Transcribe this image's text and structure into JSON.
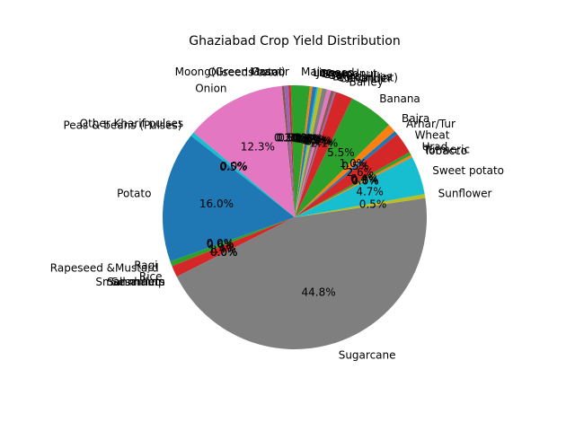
{
  "chart_data": {
    "type": "pie",
    "title": "Ghaziabad Crop Yield Distribution",
    "start_angle_deg": 140,
    "direction": "counterclockwise",
    "slices": [
      {
        "name": "Other Kharif pulses",
        "value": 0.0,
        "pct_label": "0.0%",
        "color": "#1f77b4"
      },
      {
        "name": "Peas & beans (Pulses)",
        "value": 0.5,
        "pct_label": "0.5%",
        "color": "#17becf"
      },
      {
        "name": "Potato",
        "value": 16.0,
        "pct_label": "16.0%",
        "color": "#1f77b4"
      },
      {
        "name": "Ragi",
        "value": 0.0,
        "pct_label": "0.0%",
        "color": "#ff7f0e"
      },
      {
        "name": "Rapeseed &Mustard",
        "value": 0.6,
        "pct_label": "0.6%",
        "color": "#2ca02c"
      },
      {
        "name": "Rice",
        "value": 1.4,
        "pct_label": "1.4%",
        "color": "#d62728"
      },
      {
        "name": "Sannhamp",
        "value": 0.0,
        "pct_label": "0.0%",
        "color": "#9467bd"
      },
      {
        "name": "Sesamum",
        "value": 0.0,
        "pct_label": "0.0%",
        "color": "#8c564b"
      },
      {
        "name": "Small millets",
        "value": 0.0,
        "pct_label": "0.0%",
        "color": "#e377c2"
      },
      {
        "name": "Sugarcane",
        "value": 44.8,
        "pct_label": "44.8%",
        "color": "#7f7f7f"
      },
      {
        "name": "Sunflower",
        "value": 0.5,
        "pct_label": "0.5%",
        "color": "#bcbd22"
      },
      {
        "name": "Sweet potato",
        "value": 4.7,
        "pct_label": "4.7%",
        "color": "#17becf"
      },
      {
        "name": "Tobacco",
        "value": 0.0,
        "pct_label": "0.0%",
        "color": "#1f77b4"
      },
      {
        "name": "Turmeric",
        "value": 0.3,
        "pct_label": "0.3%",
        "color": "#ff7f0e"
      },
      {
        "name": "Urad",
        "value": 0.4,
        "pct_label": "0.4%",
        "color": "#2ca02c"
      },
      {
        "name": "Wheat",
        "value": 2.6,
        "pct_label": "2.6%",
        "color": "#d62728"
      },
      {
        "name": "Arhar/Tur",
        "value": 0.5,
        "pct_label": "0.5%",
        "color": "#1f77b4"
      },
      {
        "name": "Bajra",
        "value": 1.0,
        "pct_label": "1.0%",
        "color": "#ff7f0e"
      },
      {
        "name": "Banana",
        "value": 5.5,
        "pct_label": "5.5%",
        "color": "#2ca02c"
      },
      {
        "name": "Barley",
        "value": 2.1,
        "pct_label": "2.1%",
        "color": "#d62728"
      },
      {
        "name": "Coriander",
        "value": 0.2,
        "pct_label": "0.2%",
        "color": "#9467bd"
      },
      {
        "name": "Cotton(lint)",
        "value": 0.4,
        "pct_label": "0.4%",
        "color": "#8c564b"
      },
      {
        "name": "Dry chillies",
        "value": 0.5,
        "pct_label": "0.5%",
        "color": "#e377c2"
      },
      {
        "name": "Garlic",
        "value": 0.6,
        "pct_label": "0.6%",
        "color": "#7f7f7f"
      },
      {
        "name": "Gram",
        "value": 0.5,
        "pct_label": "0.5%",
        "color": "#bcbd22"
      },
      {
        "name": "Groundnut",
        "value": 0.2,
        "pct_label": "0.2%",
        "color": "#17becf"
      },
      {
        "name": "Jowar",
        "value": 0.5,
        "pct_label": "0.5%",
        "color": "#1f77b4"
      },
      {
        "name": "Linseed",
        "value": 0.3,
        "pct_label": "0.3%",
        "color": "#ff7f0e"
      },
      {
        "name": "Maize",
        "value": 2.3,
        "pct_label": "2.3%",
        "color": "#2ca02c"
      },
      {
        "name": "Masoor",
        "value": 0.3,
        "pct_label": "0.3%",
        "color": "#d62728"
      },
      {
        "name": "Moong(Green Gram)",
        "value": 0.5,
        "pct_label": "0.5%",
        "color": "#9467bd"
      },
      {
        "name": "Oilseeds total",
        "value": 0.3,
        "pct_label": "0.3%",
        "color": "#8c564b"
      },
      {
        "name": "Onion",
        "value": 12.3,
        "pct_label": "12.3%",
        "color": "#e377c2"
      }
    ]
  }
}
